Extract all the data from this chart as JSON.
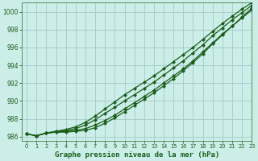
{
  "title": "Graphe pression niveau de la mer (hPa)",
  "bg_color": "#cceee8",
  "grid_color": "#aacccc",
  "line_color": "#1a5e1a",
  "xlim": [
    -0.5,
    23
  ],
  "ylim": [
    985.5,
    1001.0
  ],
  "xticks": [
    0,
    1,
    2,
    3,
    4,
    5,
    6,
    7,
    8,
    9,
    10,
    11,
    12,
    13,
    14,
    15,
    16,
    17,
    18,
    19,
    20,
    21,
    22,
    23
  ],
  "yticks": [
    986,
    988,
    990,
    992,
    994,
    996,
    998,
    1000
  ],
  "series": [
    [
      986.3,
      986.1,
      986.4,
      986.5,
      986.5,
      986.6,
      986.7,
      987.0,
      987.5,
      988.1,
      988.8,
      989.5,
      990.2,
      990.9,
      991.7,
      992.5,
      993.4,
      994.3,
      995.3,
      996.4,
      997.4,
      998.4,
      999.4,
      1000.4
    ],
    [
      986.3,
      986.1,
      986.4,
      986.6,
      986.7,
      986.9,
      987.3,
      987.9,
      988.6,
      989.3,
      990.0,
      990.7,
      991.4,
      992.1,
      992.9,
      993.7,
      994.5,
      995.4,
      996.3,
      997.3,
      998.2,
      999.1,
      999.9,
      1000.7
    ],
    [
      986.3,
      986.1,
      986.4,
      986.6,
      986.8,
      987.1,
      987.6,
      988.3,
      989.1,
      989.9,
      990.7,
      991.4,
      992.1,
      992.8,
      993.6,
      994.4,
      995.2,
      996.0,
      996.9,
      997.8,
      998.7,
      999.5,
      1000.3,
      1001.0
    ],
    [
      986.3,
      986.1,
      986.4,
      986.5,
      986.6,
      986.7,
      986.9,
      987.3,
      987.8,
      988.4,
      989.1,
      989.8,
      990.5,
      991.2,
      992.0,
      992.8,
      993.6,
      994.5,
      995.5,
      996.5,
      997.5,
      998.4,
      999.3,
      1000.2
    ]
  ]
}
